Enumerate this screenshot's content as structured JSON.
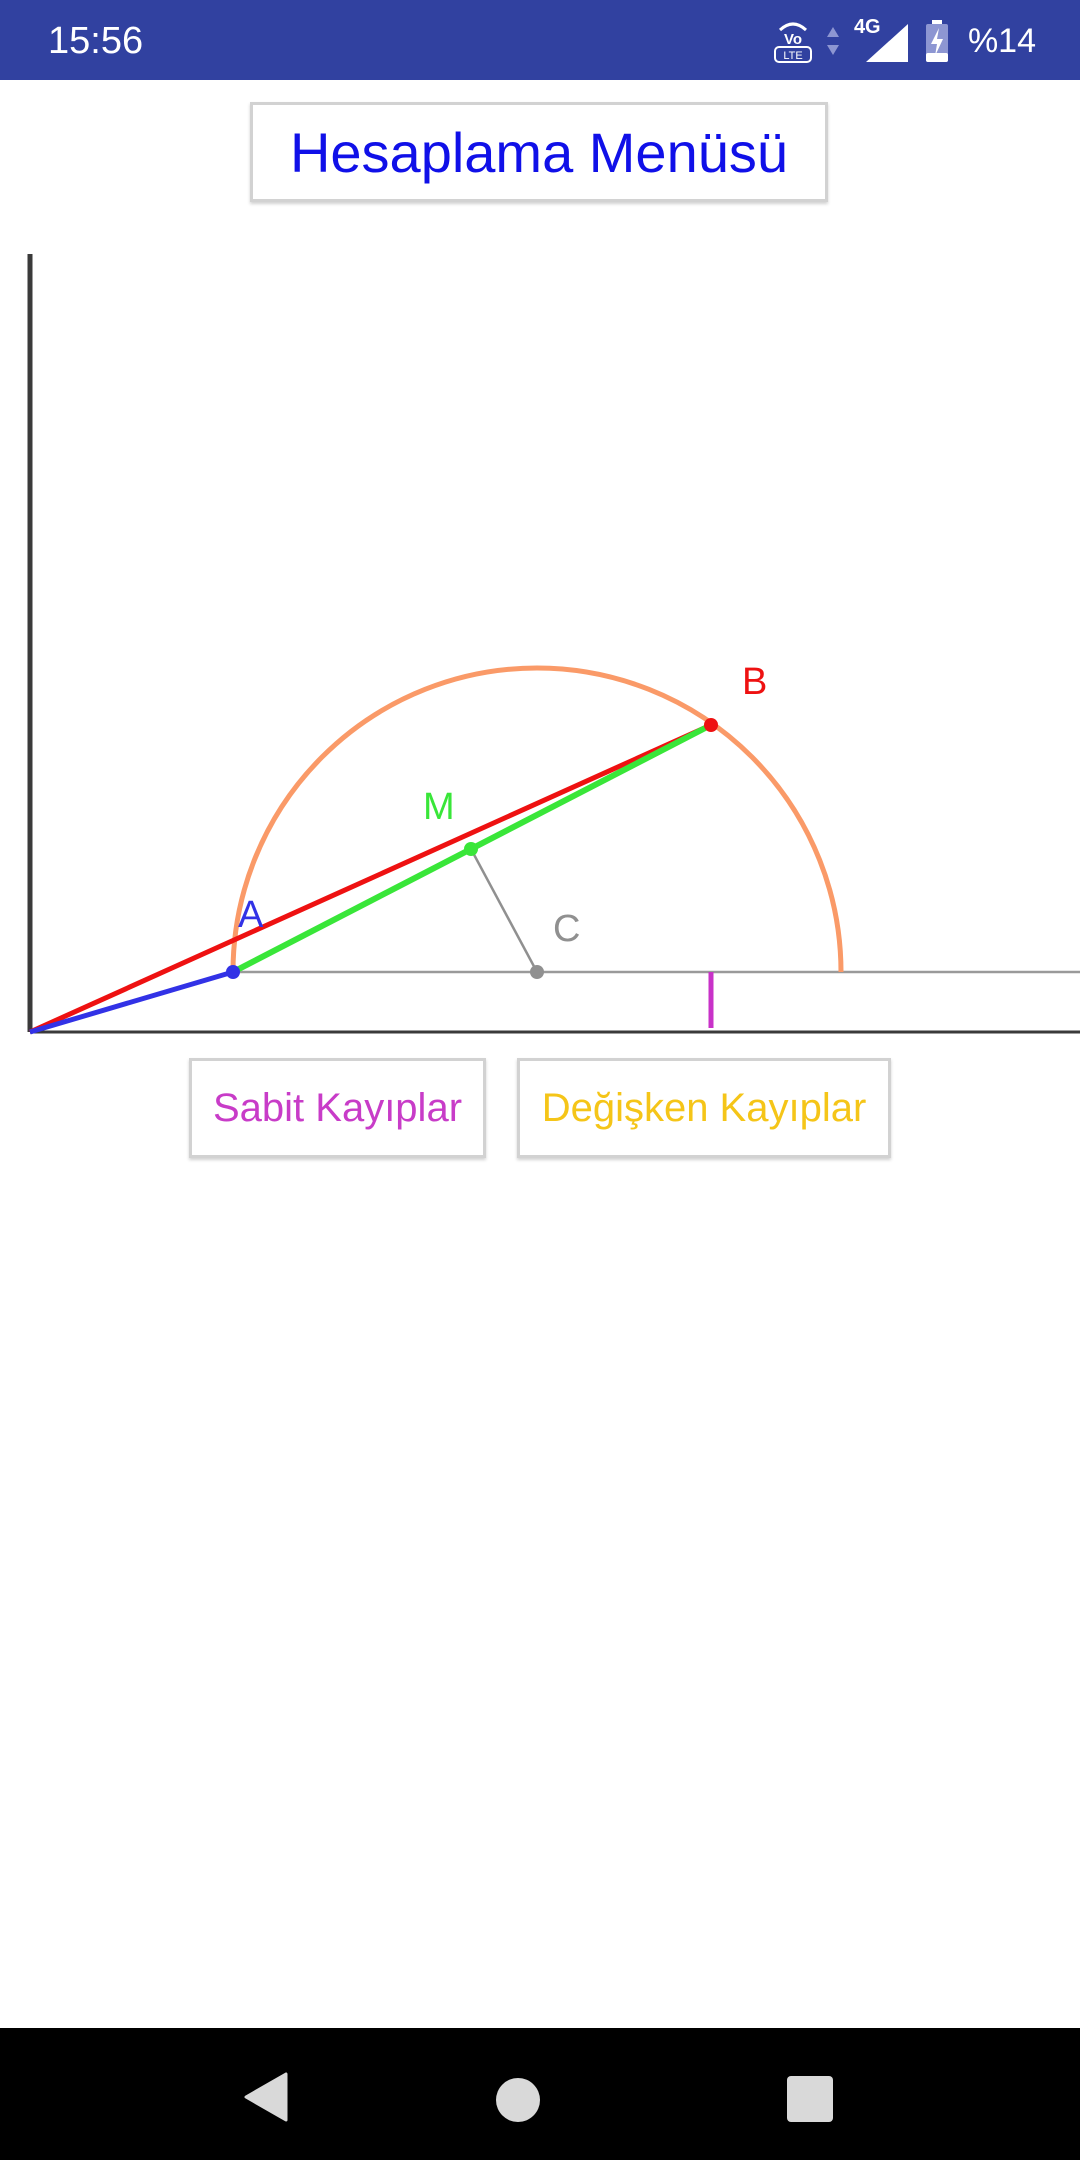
{
  "status_bar": {
    "time": "15:56",
    "network": "4G",
    "volte_label": "Vo LTE",
    "battery_text": "%14",
    "icons": [
      "volte-icon",
      "data-arrows-icon",
      "signal-icon",
      "battery-charging-icon"
    ]
  },
  "title_button": {
    "label": "Hesaplama Menüsü"
  },
  "diagram": {
    "points": {
      "a": {
        "label": "A",
        "color": "#3232e6"
      },
      "b": {
        "label": "B",
        "color": "#ee1111"
      },
      "m": {
        "label": "M",
        "color": "#39e639"
      },
      "c": {
        "label": "C",
        "color": "#909090"
      }
    },
    "arc_color": "#fa9a68",
    "marker_color": "#c832c8"
  },
  "buttons": {
    "fixed_losses": "Sabit Kayıplar",
    "variable_losses": "Değişken Kayıplar"
  },
  "nav_bar": {
    "icons": [
      "back-icon",
      "home-icon",
      "recents-icon"
    ]
  }
}
